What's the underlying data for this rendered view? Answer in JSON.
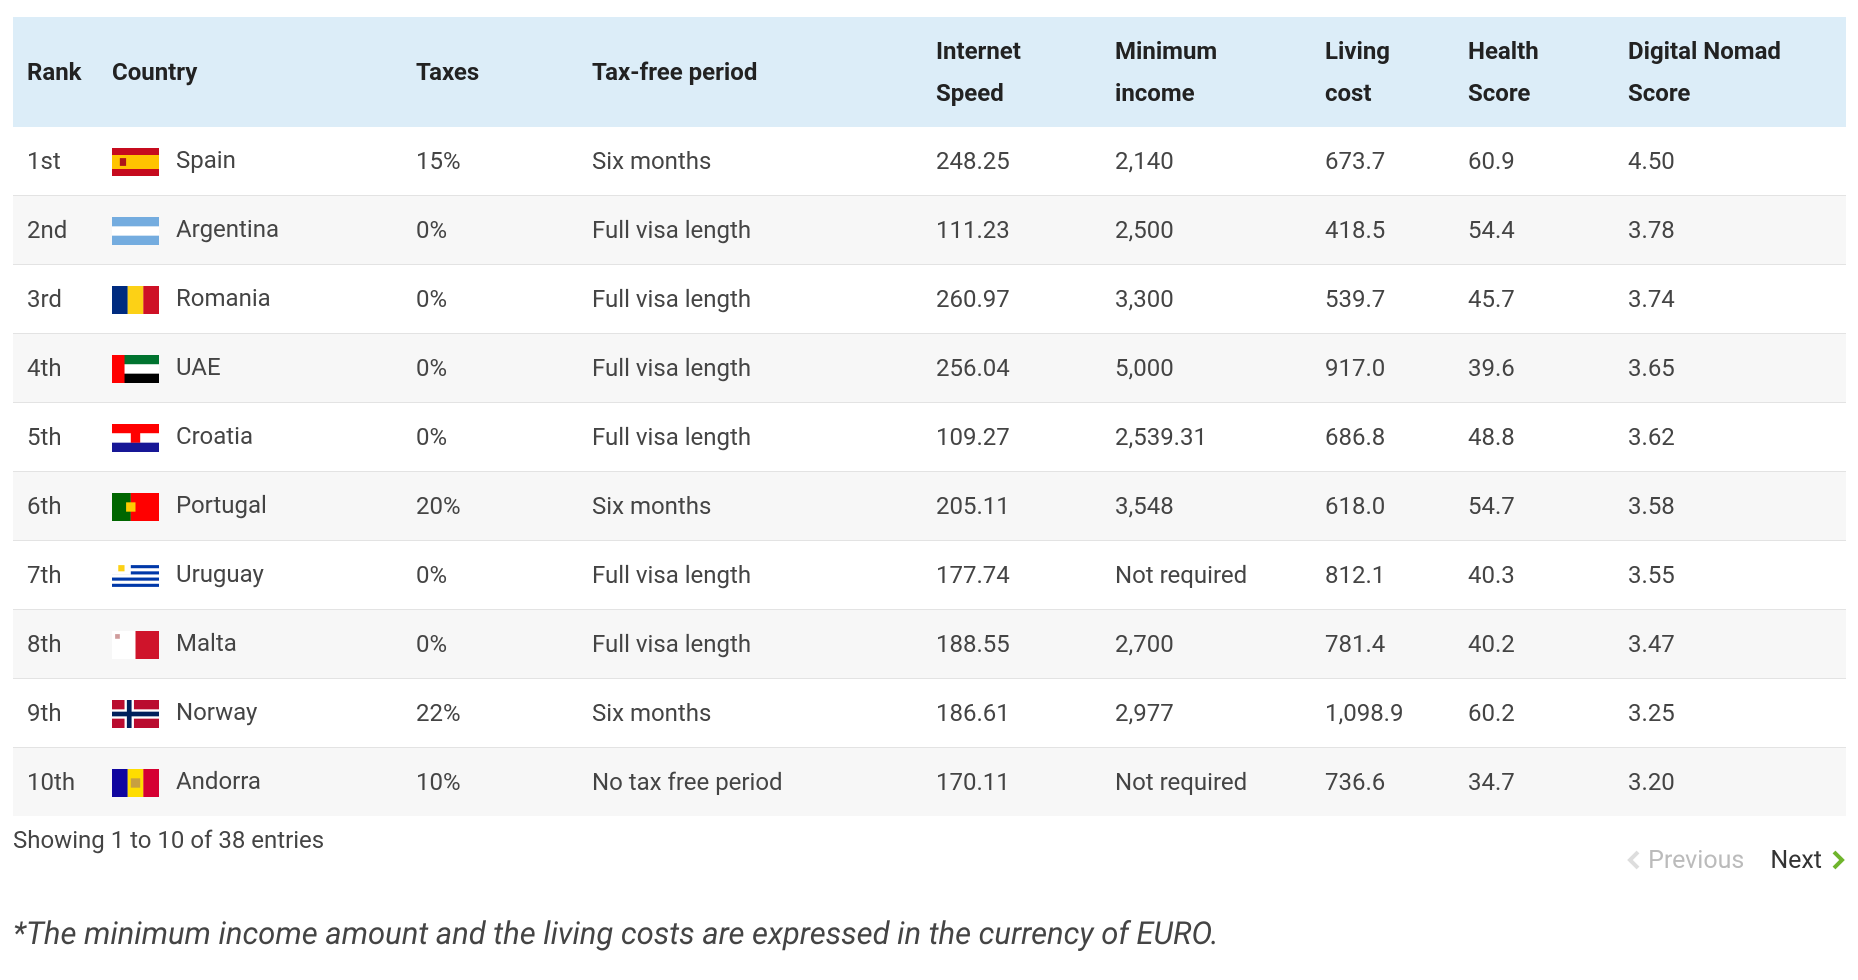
{
  "table": {
    "headers": [
      "Rank",
      "Country",
      "Taxes",
      "Tax-free period",
      "Internet Speed",
      "Minimum income",
      "Living cost",
      "Health Score",
      "Digital Nomad Score"
    ],
    "rows": [
      [
        "1st",
        "Spain",
        "15%",
        "Six months",
        "248.25",
        "2,140",
        "673.7",
        "60.9",
        "4.50"
      ],
      [
        "2nd",
        "Argentina",
        "0%",
        "Full visa length",
        "111.23",
        "2,500",
        "418.5",
        "54.4",
        "3.78"
      ],
      [
        "3rd",
        "Romania",
        "0%",
        "Full visa length",
        "260.97",
        "3,300",
        "539.7",
        "45.7",
        "3.74"
      ],
      [
        "4th",
        "UAE",
        "0%",
        "Full visa length",
        "256.04",
        "5,000",
        "917.0",
        "39.6",
        "3.65"
      ],
      [
        "5th",
        "Croatia",
        "0%",
        "Full visa length",
        "109.27",
        "2,539.31",
        "686.8",
        "48.8",
        "3.62"
      ],
      [
        "6th",
        "Portugal",
        "20%",
        "Six months",
        "205.11",
        "3,548",
        "618.0",
        "54.7",
        "3.58"
      ],
      [
        "7th",
        "Uruguay",
        "0%",
        "Full visa length",
        "177.74",
        "Not required",
        "812.1",
        "40.3",
        "3.55"
      ],
      [
        "8th",
        "Malta",
        "0%",
        "Full visa length",
        "188.55",
        "2,700",
        "781.4",
        "40.2",
        "3.47"
      ],
      [
        "9th",
        "Norway",
        "22%",
        "Six months",
        "186.61",
        "2,977",
        "1,098.9",
        "60.2",
        "3.25"
      ],
      [
        "10th",
        "Andorra",
        "10%",
        "No tax free period",
        "170.11",
        "Not required",
        "736.6",
        "34.7",
        "3.20"
      ]
    ]
  },
  "footer": {
    "info": "Showing 1 to 10 of 38 entries",
    "previous": "Previous",
    "next": "Next"
  },
  "note": "*The minimum income amount and the living costs are expressed in the currency of EURO."
}
